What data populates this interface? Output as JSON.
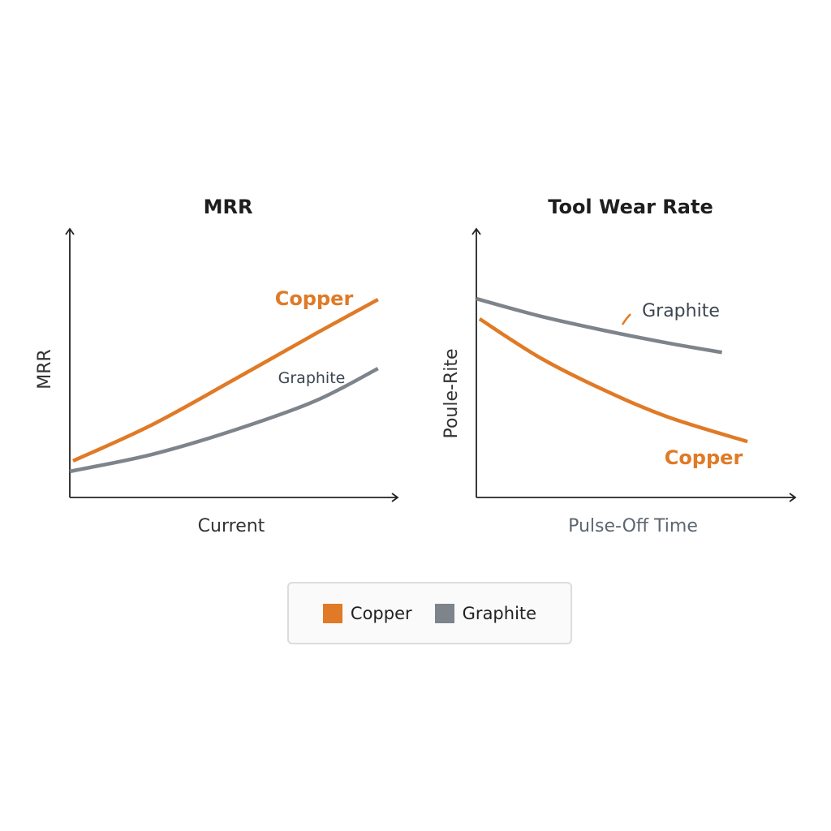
{
  "colors": {
    "copper": "#e07a26",
    "graphite": "#7d848b",
    "axis": "#222222"
  },
  "legend": {
    "placement": "bottom-center",
    "items": [
      {
        "label": "Copper",
        "color": "#e07a26"
      },
      {
        "label": "Graphite",
        "color": "#7d848b"
      }
    ]
  },
  "chart_data": [
    {
      "type": "line",
      "title": "MRR",
      "xlabel": "Current",
      "ylabel": "MRR",
      "xlim": [
        0,
        10
      ],
      "ylim": [
        0,
        10
      ],
      "grid": false,
      "series": [
        {
          "name": "Copper",
          "x": [
            0.1,
            2.5,
            5,
            7.5,
            9.4
          ],
          "y": [
            1.36,
            2.7,
            4.38,
            6.1,
            7.37
          ]
        },
        {
          "name": "Graphite",
          "x": [
            0,
            2.5,
            5,
            7.5,
            9.4
          ],
          "y": [
            0.97,
            1.6,
            2.5,
            3.6,
            4.8
          ]
        }
      ],
      "annotations": [
        {
          "text": "Copper",
          "series": "Copper"
        },
        {
          "text": "Graphite",
          "series": "Graphite"
        }
      ]
    },
    {
      "type": "line",
      "title": "Tool Wear Rate",
      "xlabel": "Pulse-Off Time",
      "ylabel": "Poule-Rite",
      "xlim": [
        0,
        10
      ],
      "ylim": [
        0,
        10
      ],
      "grid": false,
      "series": [
        {
          "name": "Graphite",
          "x": [
            0,
            2,
            4,
            6,
            7.7
          ],
          "y": [
            7.4,
            6.75,
            6.22,
            5.75,
            5.4
          ]
        },
        {
          "name": "Copper",
          "x": [
            0.1,
            2,
            4,
            6,
            8.5
          ],
          "y": [
            6.65,
            5.2,
            4.0,
            3.0,
            2.08
          ]
        }
      ],
      "annotations": [
        {
          "text": "Graphite",
          "series": "Graphite"
        },
        {
          "text": "Copper",
          "series": "Copper"
        }
      ]
    }
  ]
}
